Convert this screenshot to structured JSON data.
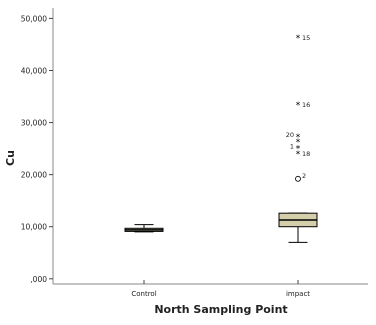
{
  "chart_data": {
    "type": "box",
    "xlabel": "North Sampling Point",
    "ylabel": "Cu",
    "ylim": [
      -1000,
      52000
    ],
    "y_ticks": [
      0,
      10000,
      20000,
      30000,
      40000,
      50000
    ],
    "y_tick_labels": [
      ",000",
      "10,000",
      "20,000",
      "30,000",
      "40,000",
      "50,000"
    ],
    "categories": [
      "Control",
      "impact"
    ],
    "grid": false,
    "box_color": "#d4ceaa",
    "boxes": [
      {
        "category": "Control",
        "whisker_low": 9000,
        "q1": 9100,
        "median": 9400,
        "q3": 9700,
        "whisker_high": 10400,
        "outliers": [],
        "extremes": []
      },
      {
        "category": "impact",
        "whisker_low": 7000,
        "q1": 10000,
        "median": 11300,
        "q3": 12600,
        "whisker_high": 12600,
        "outliers": [
          {
            "value": 19200,
            "label": "2"
          }
        ],
        "extremes": [
          {
            "value": 46200,
            "label": "15"
          },
          {
            "value": 33400,
            "label": "16"
          },
          {
            "value": 27200,
            "label": "20"
          },
          {
            "value": 26300,
            "label": ""
          },
          {
            "value": 25000,
            "label": "1"
          },
          {
            "value": 24000,
            "label": "18"
          }
        ]
      }
    ]
  }
}
